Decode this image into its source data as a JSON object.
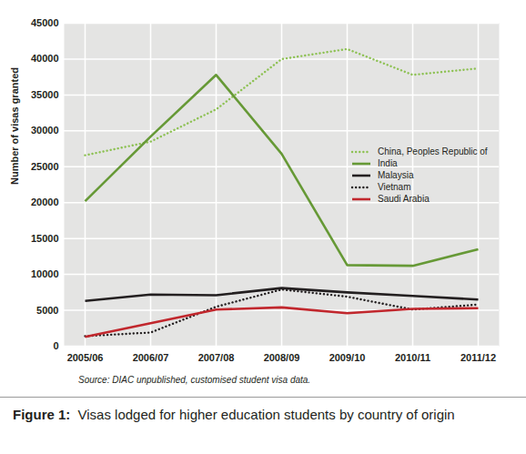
{
  "chart_data": {
    "type": "line",
    "title": "Visas lodged for higher education students by country of origin",
    "caption_label": "Figure 1:",
    "source": "Source: DIAC unpublished, customised student visa data.",
    "y_label": "Number of visas granted",
    "categories": [
      "2005/06",
      "2006/07",
      "2007/08",
      "2008/09",
      "2009/10",
      "2010/11",
      "2011/12"
    ],
    "series": [
      {
        "name": "China, Peoples Republic of",
        "color": "#8dc153",
        "line_style": "dotted",
        "values": [
          26600,
          28500,
          33000,
          40000,
          41400,
          37800,
          38700
        ]
      },
      {
        "name": "India",
        "color": "#669936",
        "line_style": "solid",
        "values": [
          20200,
          29200,
          37800,
          26800,
          11300,
          11200,
          13500
        ]
      },
      {
        "name": "Malaysia",
        "color": "#231f20",
        "line_style": "solid",
        "values": [
          6300,
          7200,
          7100,
          8100,
          7500,
          7000,
          6500
        ]
      },
      {
        "name": "Vietnam",
        "color": "#231f20",
        "line_style": "dotted",
        "values": [
          1400,
          1900,
          5500,
          7900,
          6900,
          5100,
          5800
        ]
      },
      {
        "name": "Saudi Arabia",
        "color": "#c1272d",
        "line_style": "solid",
        "values": [
          1300,
          3200,
          5100,
          5400,
          4600,
          5200,
          5300
        ]
      }
    ],
    "ylim": [
      0,
      45000
    ],
    "yticks": [
      0,
      5000,
      10000,
      15000,
      20000,
      25000,
      30000,
      35000,
      40000,
      45000
    ],
    "grid": true,
    "legend": "right"
  }
}
